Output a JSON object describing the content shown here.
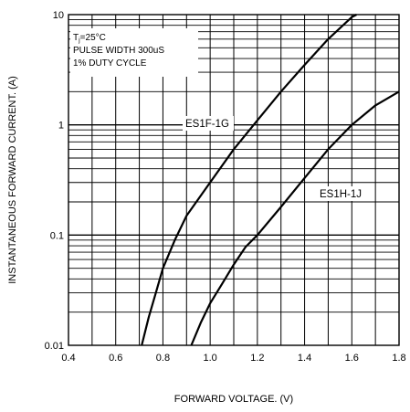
{
  "chart_data": {
    "type": "line",
    "xlabel": "FORWARD VOLTAGE. (V)",
    "ylabel": "INSTANTANEOUS FORWARD CURRENT. (A)",
    "xlim": [
      0.4,
      1.8
    ],
    "ylim": [
      0.01,
      10
    ],
    "yscale": "log",
    "grid": true,
    "x_ticks": [
      "0.4",
      "0.6",
      "0.8",
      "1.0",
      "1.2",
      "1.4",
      "1.6",
      "1.8"
    ],
    "y_ticks": [
      "0.01",
      "0.1",
      "1",
      "10"
    ],
    "conditions": {
      "temp_prefix": "T",
      "temp_sub": "j",
      "temp_value": "=25",
      "temp_unit": "°C",
      "pulse": "PULSE WIDTH 300uS",
      "duty": "1% DUTY CYCLE"
    },
    "series": [
      {
        "name": "ES1F-1G",
        "x": [
          0.71,
          0.74,
          0.77,
          0.8,
          0.85,
          0.9,
          1.0,
          1.1,
          1.2,
          1.3,
          1.4,
          1.5,
          1.6,
          1.62
        ],
        "y": [
          0.01,
          0.018,
          0.03,
          0.05,
          0.09,
          0.15,
          0.3,
          0.6,
          1.1,
          2.0,
          3.5,
          6.0,
          9.5,
          10
        ]
      },
      {
        "name": "ES1H-1J",
        "x": [
          0.92,
          0.96,
          1.0,
          1.05,
          1.1,
          1.15,
          1.2,
          1.3,
          1.4,
          1.5,
          1.6,
          1.7,
          1.8
        ],
        "y": [
          0.01,
          0.016,
          0.024,
          0.036,
          0.054,
          0.078,
          0.1,
          0.18,
          0.33,
          0.6,
          1.0,
          1.5,
          2.0
        ]
      }
    ]
  }
}
